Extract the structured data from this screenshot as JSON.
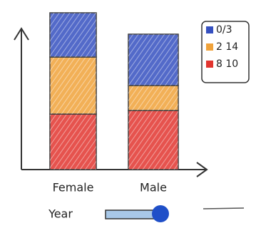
{
  "chart_data": {
    "type": "bar",
    "stacked": true,
    "categories": [
      "Female",
      "Male"
    ],
    "series": [
      {
        "name": "8 10",
        "color": "#e2352f",
        "values": [
          78,
          83
        ]
      },
      {
        "name": "2 14",
        "color": "#f0a23a",
        "values": [
          80,
          35
        ]
      },
      {
        "name": "0/3",
        "color": "#3550c0",
        "values": [
          62,
          72
        ]
      }
    ],
    "ylim": [
      0,
      220
    ],
    "slider_label": "Year"
  }
}
